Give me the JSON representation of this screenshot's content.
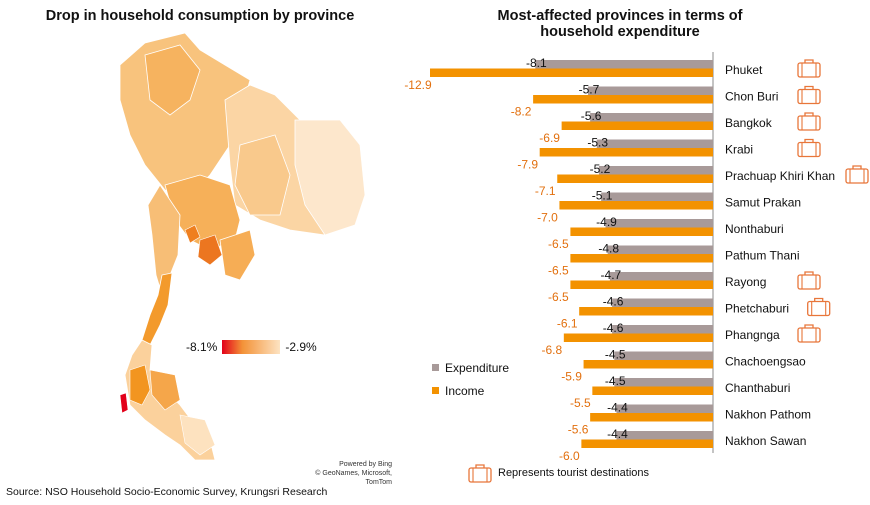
{
  "map": {
    "title": "Drop in household consumption by province",
    "scale_min_label": "-8.1%",
    "scale_max_label": "-2.9%",
    "powered_by": "Powered by Bing",
    "copyright": "© GeoNames, Microsoft, TomTom"
  },
  "source": "Source: NSO Household Socio-Economic Survey, Krungsri Research",
  "colors": {
    "expenditure": "#a89a99",
    "income": "#f39200",
    "income_label": "#e2700f",
    "suitcase": "#e8763a",
    "map_light": "#fde3c2",
    "map_mid": "#f7b86a",
    "map_dark": "#e2001a"
  },
  "chart_data": {
    "type": "bar",
    "orientation": "horizontal",
    "title": "Most-affected provinces in terms of household expenditure",
    "categories": [
      "Phuket",
      "Chon Buri",
      "Bangkok",
      "Krabi",
      "Prachuap Khiri Khan",
      "Samut Prakan",
      "Nonthaburi",
      "Pathum Thani",
      "Rayong",
      "Phetchaburi",
      "Phangnga",
      "Chachoengsao",
      "Chanthaburi",
      "Nakhon Pathom",
      "Nakhon Sawan"
    ],
    "series": [
      {
        "name": "Expenditure",
        "values": [
          -8.1,
          -5.7,
          -5.6,
          -5.3,
          -5.2,
          -5.1,
          -4.9,
          -4.8,
          -4.7,
          -4.6,
          -4.6,
          -4.5,
          -4.5,
          -4.4,
          -4.4
        ],
        "labels": [
          "-8.1",
          "-5.7",
          "-5.6",
          "-5.3",
          "-5.2",
          "-5.1",
          "-4.9",
          "-4.8",
          "-4.7",
          "-4.6",
          "-4.6",
          "-4.5",
          "-4.5",
          "-4.4",
          "-4.4"
        ]
      },
      {
        "name": "Income",
        "values": [
          -12.9,
          -8.2,
          -6.9,
          -7.9,
          -7.1,
          -7.0,
          -6.5,
          -6.5,
          -6.5,
          -6.1,
          -6.8,
          -5.9,
          -5.5,
          -5.6,
          -6.0
        ],
        "labels": [
          "-12.9",
          "-8.2",
          "-6.9",
          "-7.9",
          "-7.1",
          "-7.0",
          "-6.5",
          "-6.5",
          "-6.5",
          "-6.1",
          "-6.8",
          "-5.9",
          "-5.5",
          "-5.6",
          "-6.0"
        ]
      }
    ],
    "tourist_destinations": [
      "Phuket",
      "Chon Buri",
      "Bangkok",
      "Krabi",
      "Prachuap Khiri Khan",
      "Rayong",
      "Phetchaburi",
      "Phangnga"
    ],
    "tourist_note": "Represents tourist destinations",
    "xlim": [
      -13.5,
      0
    ],
    "legend_position": "left"
  }
}
